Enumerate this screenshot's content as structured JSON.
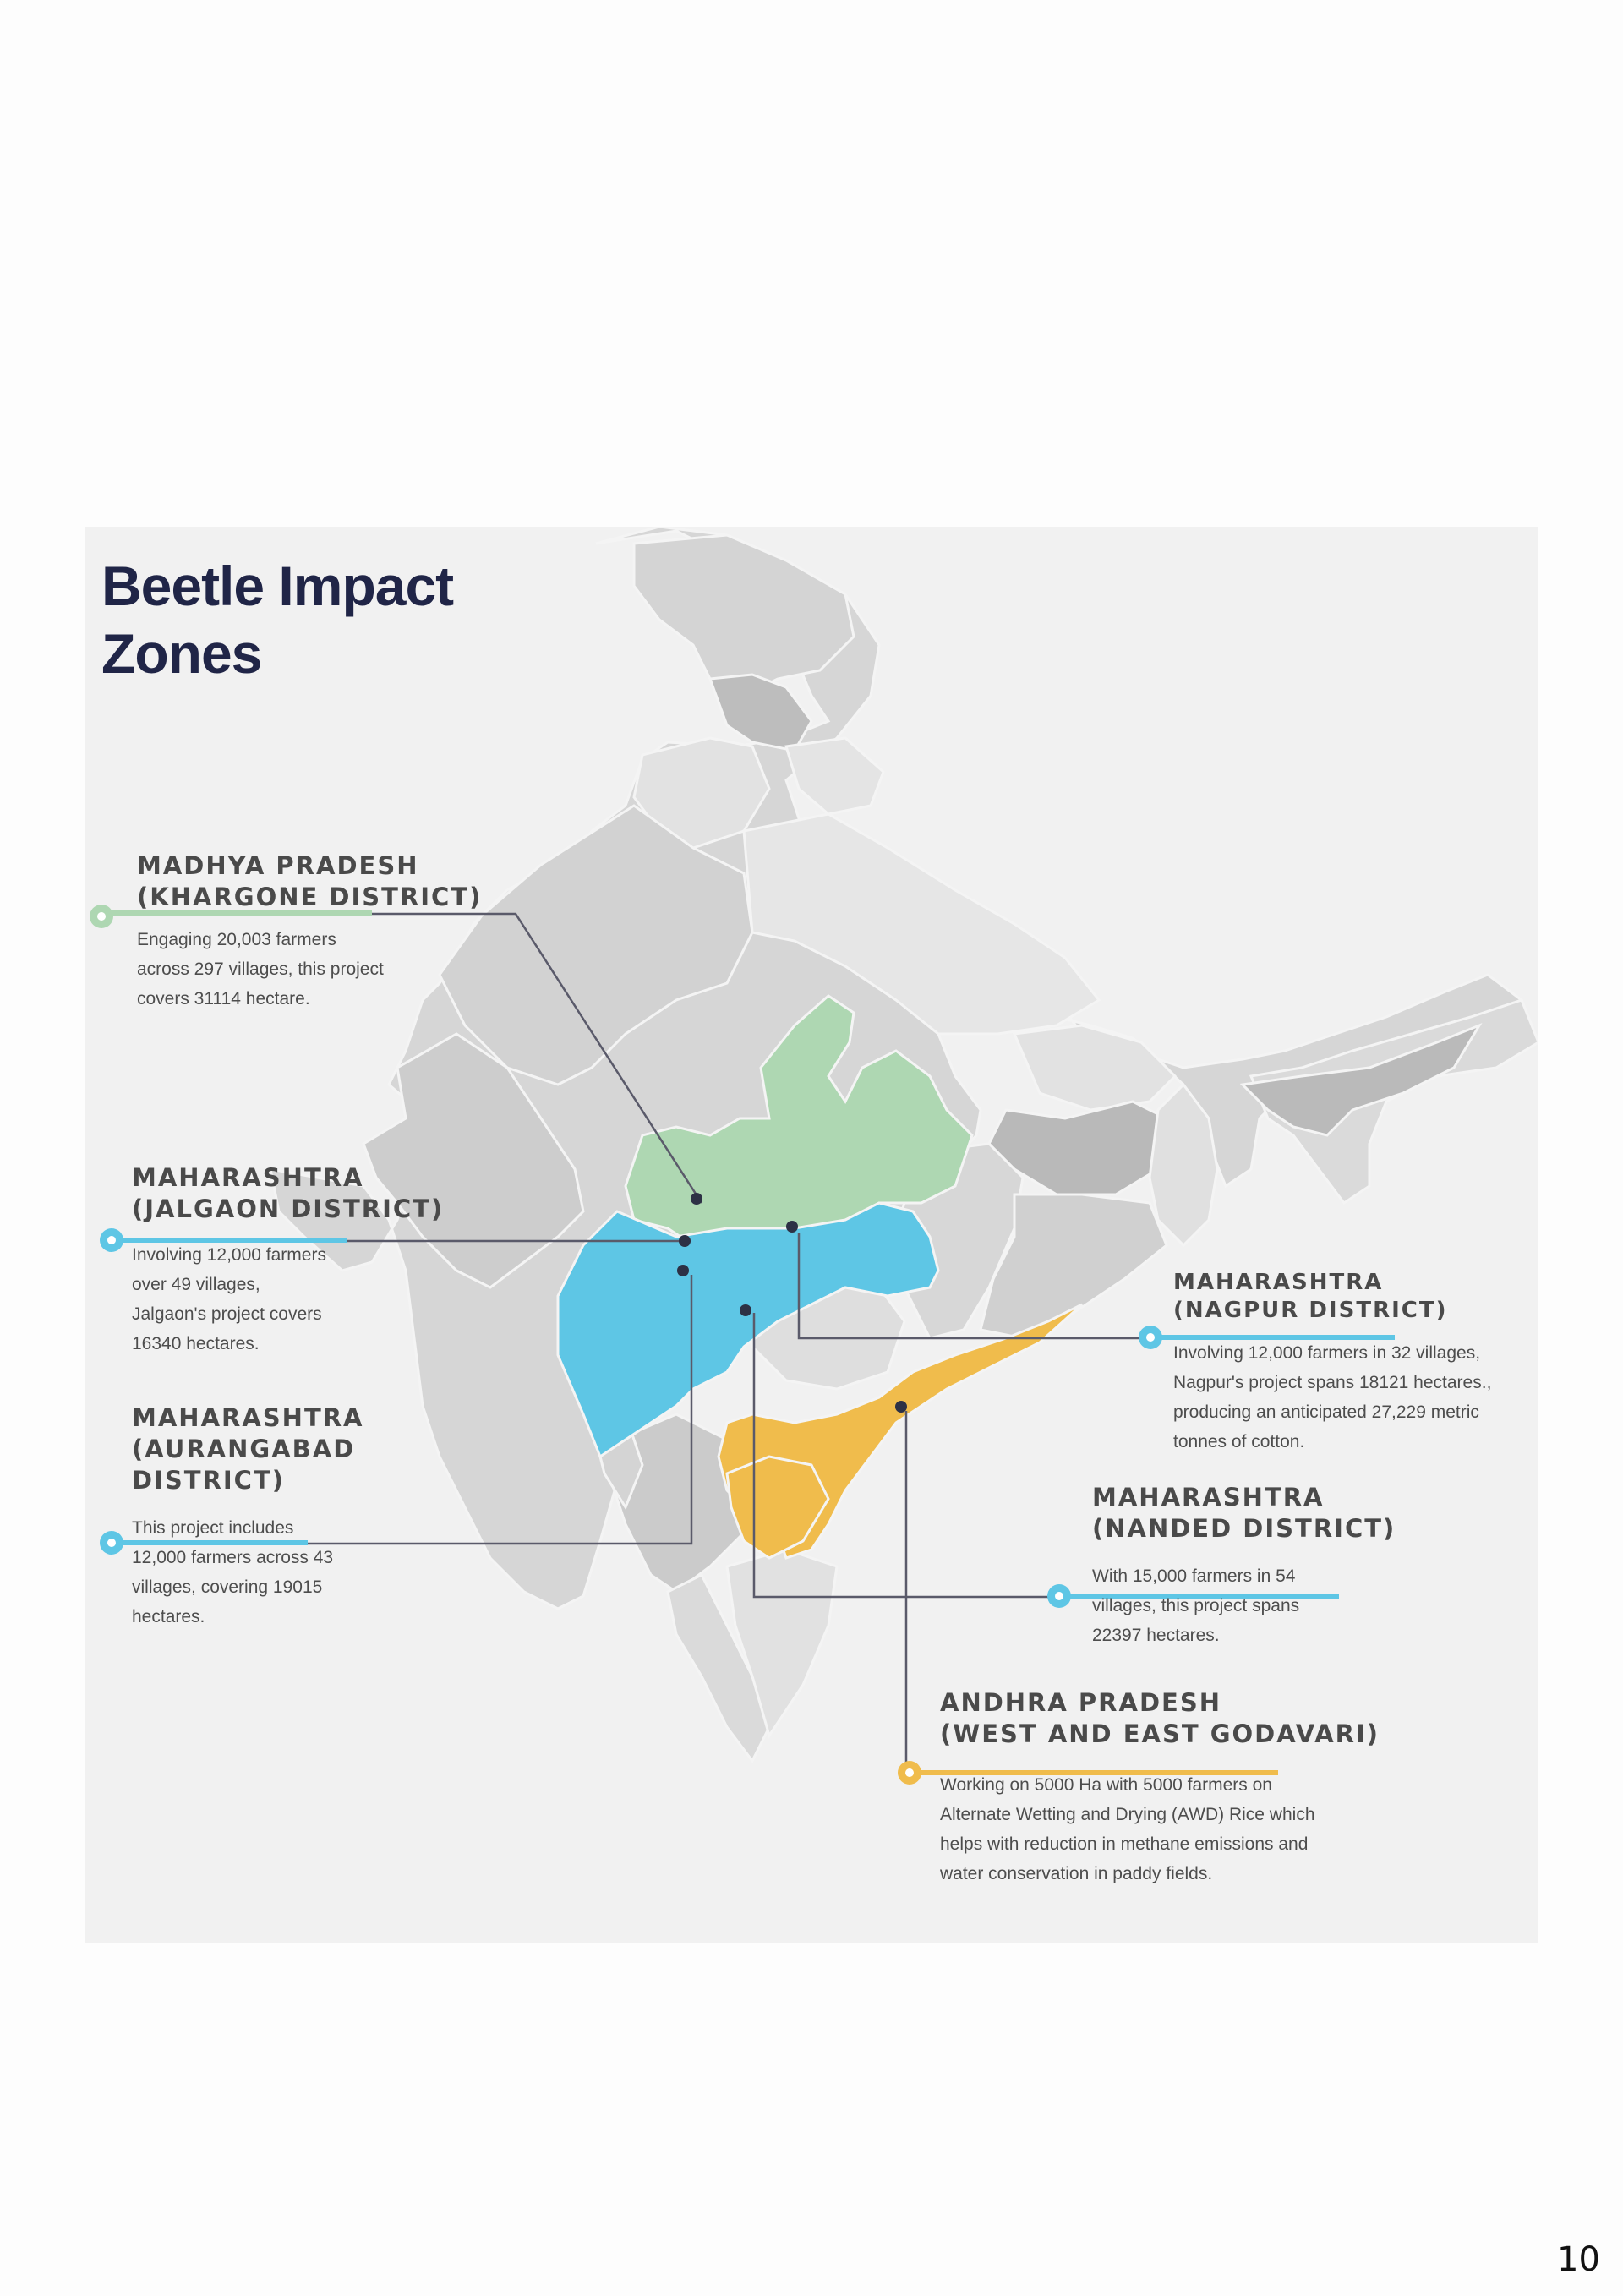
{
  "title_lines": [
    "Beetle Impact",
    "Zones"
  ],
  "page_number": "10",
  "colors": {
    "madhya_pradesh": "#aed7b2",
    "maharashtra": "#5ec6e5",
    "andhra_pradesh": "#f0bc4c",
    "state_light": "#e3e3e3",
    "state_mid": "#d1d1d1",
    "state_dark": "#b7b7b7",
    "title": "#202547",
    "leader_line": "#5a5a6a"
  },
  "zones": [
    {
      "id": "khargone",
      "title_lines": [
        "MADHYA PRADESH",
        "(KHARGONE DISTRICT)"
      ],
      "desc_lines": [
        "Engaging 20,003 farmers",
        "across 297 villages, this project",
        "covers 31114 hectare."
      ],
      "color": "#aed7b2"
    },
    {
      "id": "jalgaon",
      "title_lines": [
        "MAHARASHTRA",
        "(JALGAON DISTRICT)"
      ],
      "desc_lines": [
        "Involving 12,000 farmers",
        "over 49 villages,",
        "Jalgaon's project covers",
        "16340 hectares."
      ],
      "color": "#5ec6e5"
    },
    {
      "id": "aurangabad",
      "title_lines": [
        "MAHARASHTRA",
        "(AURANGABAD",
        "DISTRICT)"
      ],
      "desc_lines": [
        "This project includes",
        "12,000 farmers across 43",
        "villages, covering 19015",
        "hectares."
      ],
      "color": "#5ec6e5"
    },
    {
      "id": "nagpur",
      "title_lines": [
        "MAHARASHTRA",
        "(NAGPUR DISTRICT)"
      ],
      "desc_lines": [
        "Involving 12,000 farmers in 32 villages,",
        "Nagpur's project spans 18121 hectares.,",
        "producing an anticipated 27,229 metric",
        "tonnes of  cotton."
      ],
      "color": "#5ec6e5"
    },
    {
      "id": "nanded",
      "title_lines": [
        "MAHARASHTRA",
        "(NANDED DISTRICT)"
      ],
      "desc_lines": [
        "With 15,000 farmers in 54",
        "villages, this project spans",
        "22397 hectares."
      ],
      "color": "#5ec6e5"
    },
    {
      "id": "andhra",
      "title_lines": [
        "ANDHRA PRADESH",
        "(WEST AND EAST GODAVARI)"
      ],
      "desc_lines": [
        "Working on 5000 Ha with 5000 farmers on",
        "Alternate Wetting and Drying (AWD) Rice which",
        "helps with reduction in methane emissions and",
        "water conservation in paddy fields."
      ],
      "color": "#f0bc4c"
    }
  ]
}
